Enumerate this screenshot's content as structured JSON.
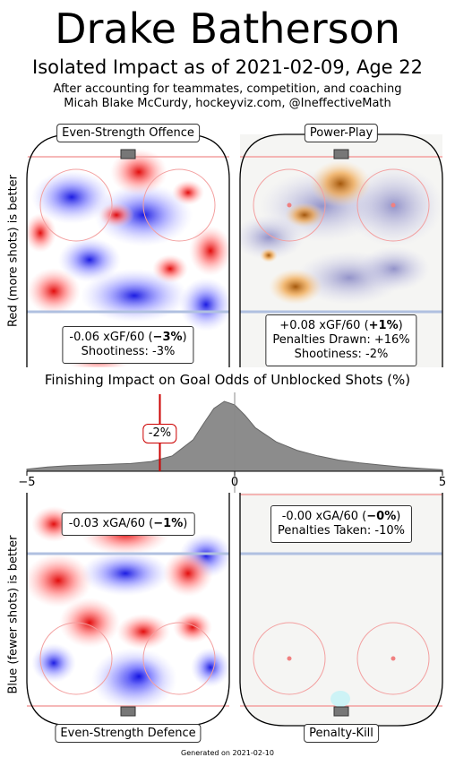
{
  "header": {
    "title": "Drake Batherson",
    "subtitle": "Isolated Impact as of 2021-02-09, Age 22",
    "credit_line1": "After accounting for teammates, competition, and coaching",
    "credit_line2": "Micah Blake McCurdy, hockeyviz.com, @IneffectiveMath"
  },
  "panels": {
    "ev_offence": {
      "label": "Even-Strength Offence",
      "stat_line1_pre": "-0.06 xGF/60 (",
      "stat_line1_bold": "−3%",
      "stat_line1_post": ")",
      "stat_line2": "Shootiness: -3%"
    },
    "power_play": {
      "label": "Power-Play",
      "stat_line1_pre": "+0.08 xGF/60 (",
      "stat_line1_bold": "+1%",
      "stat_line1_post": ")",
      "stat_line2": "Penalties Drawn: +16%",
      "stat_line3": "Shootiness: -2%"
    },
    "ev_defence": {
      "label": "Even-Strength Defence",
      "stat_line1_pre": "-0.03 xGA/60 (",
      "stat_line1_bold": "−1%",
      "stat_line1_post": ")"
    },
    "penalty_kill": {
      "label": "Penalty-Kill",
      "stat_line1_pre": "-0.00 xGA/60 (",
      "stat_line1_bold": "−0%",
      "stat_line1_post": ")",
      "stat_line2": "Penalties Taken: -10%"
    }
  },
  "axis_labels": {
    "top_side": "Red (more shots) is better",
    "bottom_side": "Blue (fewer shots) is better"
  },
  "chart_data": {
    "type": "area",
    "title": "Finishing Impact on Goal Odds of Unblocked Shots (%)",
    "xlim": [
      -5,
      5
    ],
    "xticks": [
      "−5",
      "0",
      "5"
    ],
    "marker_value": -1.8,
    "marker_label": "-2%",
    "x": [
      -5,
      -4.5,
      -4,
      -3.5,
      -3,
      -2.5,
      -2,
      -1.5,
      -1,
      -0.75,
      -0.5,
      -0.25,
      0,
      0.25,
      0.5,
      1,
      1.5,
      2,
      2.5,
      3,
      3.5,
      4,
      4.5,
      5
    ],
    "y": [
      0.03,
      0.06,
      0.08,
      0.09,
      0.1,
      0.11,
      0.14,
      0.22,
      0.45,
      0.68,
      0.9,
      1.0,
      0.95,
      0.8,
      0.62,
      0.42,
      0.3,
      0.22,
      0.16,
      0.12,
      0.09,
      0.06,
      0.04,
      0.02
    ],
    "fill_color": "#8c8c8c",
    "marker_color": "#cc0000"
  },
  "footer": {
    "generated": "Generated on 2021-02-10"
  }
}
